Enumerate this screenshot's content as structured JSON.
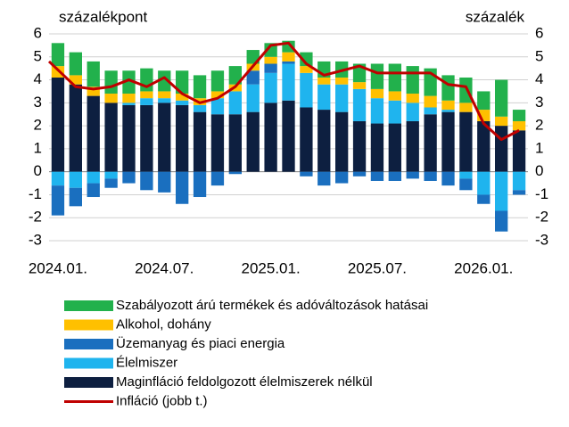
{
  "chart_data": {
    "type": "bar",
    "y_label": "százalékpont",
    "y2_label": "százalék",
    "categories": [
      "2024.01.",
      null,
      null,
      null,
      null,
      null,
      "2024.07.",
      null,
      null,
      null,
      null,
      null,
      "2025.01.",
      null,
      null,
      null,
      null,
      null,
      "2025.07.",
      null,
      null,
      null,
      null,
      null,
      "2026.01.",
      null,
      null
    ],
    "ylim": [
      -3,
      6
    ],
    "yticks": [
      -3,
      -2,
      -1,
      0,
      1,
      2,
      3,
      4,
      5,
      6
    ],
    "y2lim": [
      -3,
      6
    ],
    "y2ticks": [
      -3,
      -2,
      -1,
      0,
      1,
      2,
      3,
      4,
      5,
      6
    ],
    "grid": true,
    "legend": "bottom",
    "series": [
      {
        "name": "Szabályozott árú termékek és adóváltozások hatásai",
        "color": "#22b14c",
        "values": [
          1.0,
          1.0,
          1.1,
          1.0,
          1.0,
          1.0,
          0.9,
          1.0,
          1.0,
          0.9,
          0.8,
          0.6,
          0.6,
          0.5,
          0.6,
          0.7,
          0.7,
          0.8,
          1.1,
          1.2,
          1.2,
          1.2,
          1.1,
          1.1,
          0.8,
          1.6,
          0.5
        ]
      },
      {
        "name": "Alkohol, dohány",
        "color": "#ffc000",
        "values": [
          0.5,
          0.4,
          0.4,
          0.4,
          0.4,
          0.3,
          0.3,
          0.3,
          0.3,
          0.3,
          0.3,
          0.3,
          0.3,
          0.4,
          0.3,
          0.3,
          0.3,
          0.3,
          0.4,
          0.4,
          0.4,
          0.5,
          0.4,
          0.4,
          0.5,
          0.4,
          0.4
        ]
      },
      {
        "name": "Üzemanyag és piaci energia",
        "color": "#1a6fbf",
        "values": [
          -1.3,
          -0.8,
          -0.6,
          -0.4,
          -0.5,
          -0.8,
          -0.9,
          -1.4,
          -1.1,
          -0.6,
          -0.1,
          0.6,
          0.4,
          0.1,
          -0.2,
          -0.6,
          -0.5,
          -0.2,
          -0.4,
          -0.4,
          -0.3,
          -0.4,
          -0.6,
          -0.5,
          -0.4,
          -0.9,
          -0.2
        ]
      },
      {
        "name": "Élelmiszer",
        "color": "#1fb4ee",
        "values": [
          -0.6,
          -0.7,
          -0.5,
          -0.3,
          0.1,
          0.3,
          0.2,
          0.2,
          0.3,
          0.7,
          1.0,
          1.2,
          1.3,
          1.6,
          1.5,
          1.1,
          1.2,
          1.4,
          1.1,
          1.0,
          0.8,
          0.3,
          0.1,
          -0.3,
          -1.0,
          -1.7,
          -0.8
        ]
      },
      {
        "name": "Maginfláció feldolgozott élelmiszerek nélkül",
        "color": "#0d1f40",
        "values": [
          4.1,
          3.8,
          3.3,
          3.0,
          2.9,
          2.9,
          3.0,
          2.9,
          2.6,
          2.5,
          2.5,
          2.6,
          3.0,
          3.1,
          2.8,
          2.7,
          2.6,
          2.2,
          2.1,
          2.1,
          2.2,
          2.5,
          2.6,
          2.6,
          2.2,
          2.0,
          1.8
        ]
      },
      {
        "name": "Infláció (jobb t.)",
        "color": "#c00000",
        "type": "line",
        "axis": "y2",
        "values": [
          4.8,
          3.7,
          3.6,
          3.7,
          4.0,
          3.7,
          4.1,
          3.4,
          3.0,
          3.2,
          3.7,
          4.6,
          5.5,
          5.6,
          4.7,
          4.2,
          4.4,
          4.6,
          4.3,
          4.3,
          4.3,
          4.3,
          3.8,
          3.7,
          2.1,
          1.4,
          1.8
        ]
      }
    ]
  }
}
